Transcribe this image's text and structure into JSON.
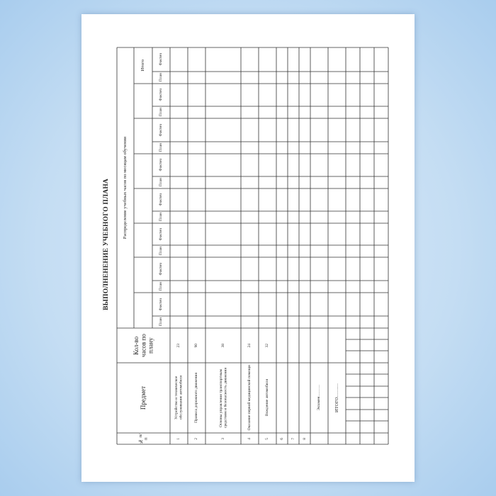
{
  "document": {
    "title": "ВЫПОЛНЕНЕНИЕ УЧЕБНОГО ПЛАНА",
    "header": {
      "number": "№ п/п",
      "subject": "Предмет",
      "hours": "Кол-во часов по плану",
      "distribution": "Распределение учебных часов по месяцам обучения",
      "total": "Итого",
      "plan": "План",
      "fact": "Фактич"
    },
    "rows": [
      {
        "num": "1",
        "subject": "Устройство и техническое обслуживание автомобиля",
        "hours": "23"
      },
      {
        "num": "2",
        "subject": "Правила дорожного движения",
        "hours": "90"
      },
      {
        "num": "3",
        "subject": "Основы управления транспортным средством и безопасность движения",
        "hours": "38"
      },
      {
        "num": "4",
        "subject": "Оказание первой медицинской помощи",
        "hours": "24"
      },
      {
        "num": "5",
        "subject": "Вождение автомобиля",
        "hours": "32"
      },
      {
        "num": "6",
        "subject": "",
        "hours": ""
      },
      {
        "num": "7",
        "subject": "",
        "hours": ""
      },
      {
        "num": "8",
        "subject": "",
        "hours": ""
      }
    ],
    "exam": "Экзамен………",
    "grand_total": "ИТОГО………"
  },
  "colors": {
    "background": "#c4ddf3",
    "page": "#ffffff",
    "lines": "#333333"
  }
}
